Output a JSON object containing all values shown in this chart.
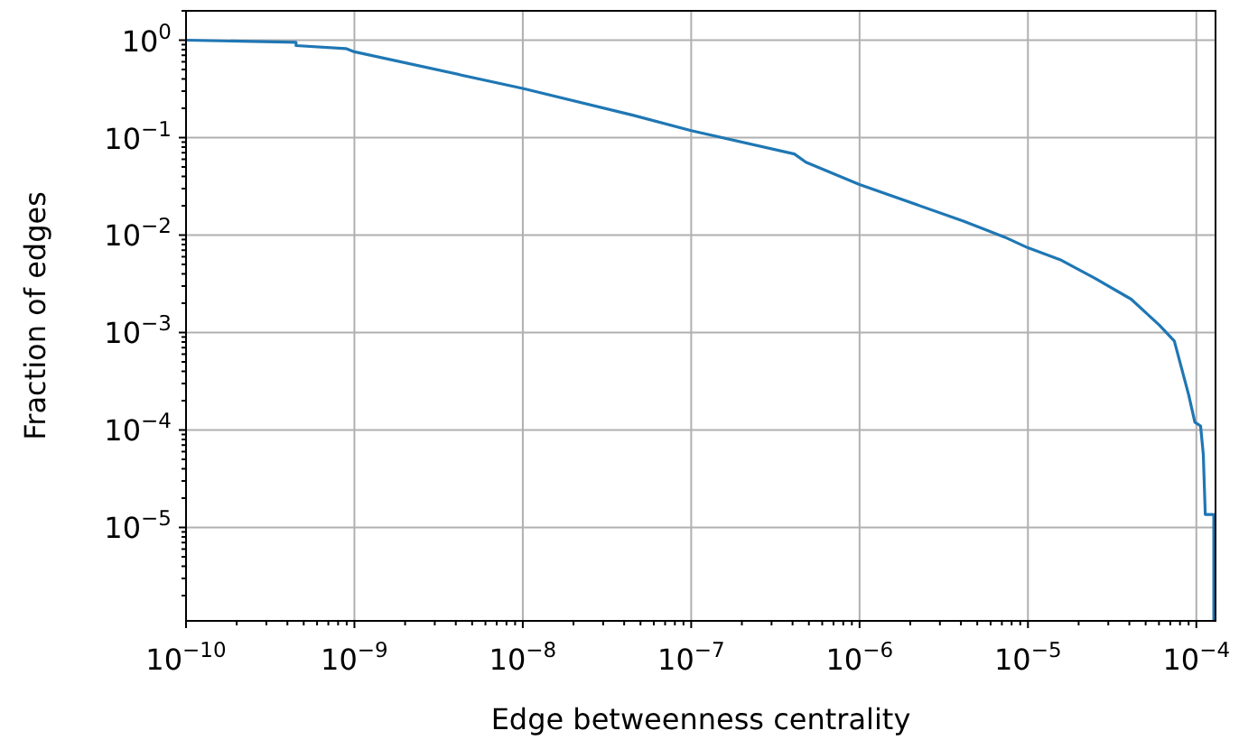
{
  "chart_data": {
    "type": "line",
    "xlabel": "Edge betweenness centrality",
    "ylabel": "Fraction of edges",
    "log": "xy",
    "grid": true,
    "marker": "none",
    "line_style": "solid",
    "xlim": [
      1e-10,
      0.00013
    ],
    "ylim": [
      1.1e-06,
      2
    ],
    "xticks": [
      {
        "value": 1e-10,
        "label": "10$^{−10}$"
      },
      {
        "value": 1e-09,
        "label": "10$^{−9}$"
      },
      {
        "value": 1e-08,
        "label": "10$^{−8}$"
      },
      {
        "value": 1e-07,
        "label": "10$^{−7}$"
      },
      {
        "value": 1e-06,
        "label": "10$^{−6}$"
      },
      {
        "value": 1e-05,
        "label": "10$^{−5}$"
      },
      {
        "value": 0.0001,
        "label": "10$^{−4}$"
      },
      {
        "value": 2e-10,
        "label": null
      },
      {
        "value": 3e-10,
        "label": null
      },
      {
        "value": 4e-10,
        "label": null
      },
      {
        "value": 5e-10,
        "label": null
      },
      {
        "value": 6e-10,
        "label": null
      },
      {
        "value": 7e-10,
        "label": null
      },
      {
        "value": 8e-10,
        "label": null
      },
      {
        "value": 9e-10,
        "label": null
      },
      {
        "value": 2e-09,
        "label": null
      },
      {
        "value": 3e-09,
        "label": null
      },
      {
        "value": 4e-09,
        "label": null
      },
      {
        "value": 5e-09,
        "label": null
      },
      {
        "value": 6e-09,
        "label": null
      },
      {
        "value": 7e-09,
        "label": null
      },
      {
        "value": 8e-09,
        "label": null
      },
      {
        "value": 9e-09,
        "label": null
      },
      {
        "value": 2e-08,
        "label": null
      },
      {
        "value": 3e-08,
        "label": null
      },
      {
        "value": 4e-08,
        "label": null
      },
      {
        "value": 5e-08,
        "label": null
      },
      {
        "value": 6e-08,
        "label": null
      },
      {
        "value": 7e-08,
        "label": null
      },
      {
        "value": 8e-08,
        "label": null
      },
      {
        "value": 9e-08,
        "label": null
      },
      {
        "value": 2e-07,
        "label": null
      },
      {
        "value": 3e-07,
        "label": null
      },
      {
        "value": 4e-07,
        "label": null
      },
      {
        "value": 5e-07,
        "label": null
      },
      {
        "value": 6e-07,
        "label": null
      },
      {
        "value": 7e-07,
        "label": null
      },
      {
        "value": 8e-07,
        "label": null
      },
      {
        "value": 9e-07,
        "label": null
      },
      {
        "value": 2e-06,
        "label": null
      },
      {
        "value": 3e-06,
        "label": null
      },
      {
        "value": 4e-06,
        "label": null
      },
      {
        "value": 5e-06,
        "label": null
      },
      {
        "value": 6e-06,
        "label": null
      },
      {
        "value": 7e-06,
        "label": null
      },
      {
        "value": 8e-06,
        "label": null
      },
      {
        "value": 9e-06,
        "label": null
      },
      {
        "value": 2e-05,
        "label": null
      },
      {
        "value": 3e-05,
        "label": null
      },
      {
        "value": 4e-05,
        "label": null
      },
      {
        "value": 5e-05,
        "label": null
      },
      {
        "value": 6e-05,
        "label": null
      },
      {
        "value": 7e-05,
        "label": null
      },
      {
        "value": 8e-05,
        "label": null
      },
      {
        "value": 9e-05,
        "label": null
      }
    ],
    "yticks": [
      {
        "value": 1,
        "label": "10$^{0}$"
      },
      {
        "value": 0.1,
        "label": "10$^{−1}$"
      },
      {
        "value": 0.01,
        "label": "10$^{−2}$"
      },
      {
        "value": 0.001,
        "label": "10$^{−3}$"
      },
      {
        "value": 0.0001,
        "label": "10$^{−4}$"
      },
      {
        "value": 1e-05,
        "label": "10$^{−5}$"
      },
      {
        "value": 2e-06,
        "label": null
      },
      {
        "value": 3e-06,
        "label": null
      },
      {
        "value": 4e-06,
        "label": null
      },
      {
        "value": 5e-06,
        "label": null
      },
      {
        "value": 6e-06,
        "label": null
      },
      {
        "value": 7e-06,
        "label": null
      },
      {
        "value": 8e-06,
        "label": null
      },
      {
        "value": 9e-06,
        "label": null
      },
      {
        "value": 2e-05,
        "label": null
      },
      {
        "value": 3e-05,
        "label": null
      },
      {
        "value": 4e-05,
        "label": null
      },
      {
        "value": 5e-05,
        "label": null
      },
      {
        "value": 6e-05,
        "label": null
      },
      {
        "value": 7e-05,
        "label": null
      },
      {
        "value": 8e-05,
        "label": null
      },
      {
        "value": 9e-05,
        "label": null
      },
      {
        "value": 0.0002,
        "label": null
      },
      {
        "value": 0.0003,
        "label": null
      },
      {
        "value": 0.0004,
        "label": null
      },
      {
        "value": 0.0005,
        "label": null
      },
      {
        "value": 0.0006,
        "label": null
      },
      {
        "value": 0.0007,
        "label": null
      },
      {
        "value": 0.0008,
        "label": null
      },
      {
        "value": 0.0009,
        "label": null
      },
      {
        "value": 0.002,
        "label": null
      },
      {
        "value": 0.003,
        "label": null
      },
      {
        "value": 0.004,
        "label": null
      },
      {
        "value": 0.005,
        "label": null
      },
      {
        "value": 0.006,
        "label": null
      },
      {
        "value": 0.007,
        "label": null
      },
      {
        "value": 0.008,
        "label": null
      },
      {
        "value": 0.009,
        "label": null
      },
      {
        "value": 0.02,
        "label": null
      },
      {
        "value": 0.03,
        "label": null
      },
      {
        "value": 0.04,
        "label": null
      },
      {
        "value": 0.05,
        "label": null
      },
      {
        "value": 0.06,
        "label": null
      },
      {
        "value": 0.07,
        "label": null
      },
      {
        "value": 0.08,
        "label": null
      },
      {
        "value": 0.09,
        "label": null
      },
      {
        "value": 0.2,
        "label": null
      },
      {
        "value": 0.3,
        "label": null
      },
      {
        "value": 0.4,
        "label": null
      },
      {
        "value": 0.5,
        "label": null
      },
      {
        "value": 0.6,
        "label": null
      },
      {
        "value": 0.7,
        "label": null
      },
      {
        "value": 0.8,
        "label": null
      },
      {
        "value": 0.9,
        "label": null
      },
      {
        "value": 2,
        "label": null
      }
    ],
    "series": [
      {
        "color": "#1f77b4",
        "x": [
          1e-10,
          4.5e-10,
          4.5e-10,
          8.9e-10,
          1e-09,
          1e-08,
          4.5e-08,
          1e-07,
          4.1e-07,
          4.8e-07,
          1e-06,
          4.1e-06,
          7.3e-06,
          1e-05,
          1.55e-05,
          2.5e-05,
          4.1e-05,
          6e-05,
          7.4e-05,
          9e-05,
          9.8e-05,
          0.000106,
          0.00011,
          0.000113,
          0.000127,
          0.000127
        ],
        "values": [
          1,
          0.95,
          0.88,
          0.82,
          0.76,
          0.32,
          0.17,
          0.118,
          0.068,
          0.056,
          0.033,
          0.014,
          0.0095,
          0.0074,
          0.0056,
          0.0036,
          0.0022,
          0.0012,
          0.00082,
          0.00023,
          0.00012,
          0.00011,
          5.6e-05,
          1.36e-05,
          1.36e-05,
          1.1e-06
        ]
      }
    ]
  }
}
